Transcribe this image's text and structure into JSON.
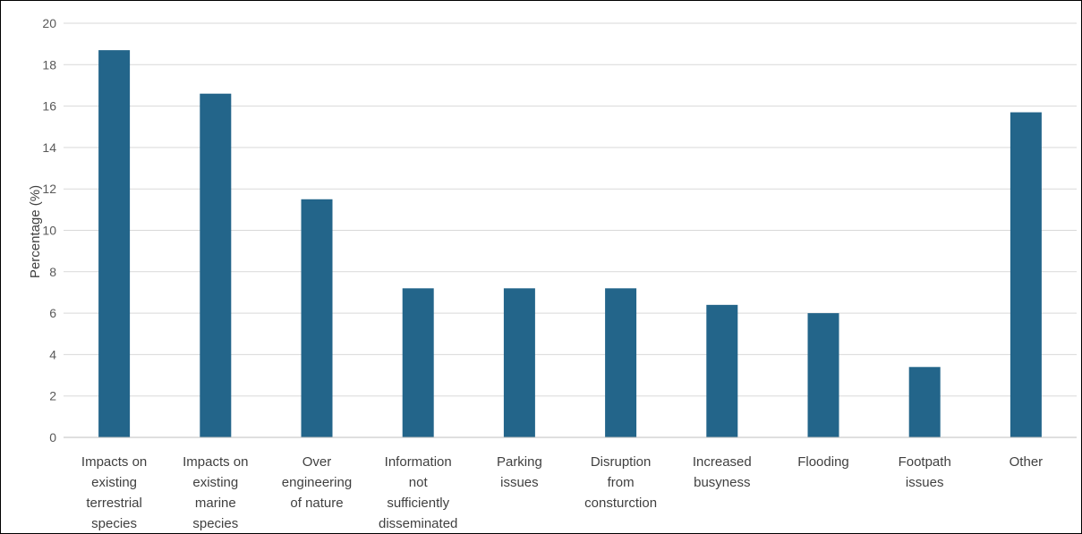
{
  "chart_data": {
    "type": "bar",
    "title": "",
    "xlabel": "",
    "ylabel": "Percentage (%)",
    "ylim": [
      0,
      20
    ],
    "yticks": [
      0,
      2,
      4,
      6,
      8,
      10,
      12,
      14,
      16,
      18,
      20
    ],
    "grid": true,
    "legend": "none",
    "categories": [
      [
        "Impacts on",
        "existing",
        "terrestrial",
        "species"
      ],
      [
        "Impacts on",
        "existing",
        "marine",
        "species"
      ],
      [
        "Over",
        "engineering",
        "of nature"
      ],
      [
        "Information",
        "not",
        "sufficiently",
        "disseminated"
      ],
      [
        "Parking",
        "issues"
      ],
      [
        "Disruption",
        "from",
        "consturction"
      ],
      [
        "Increased",
        "busyness"
      ],
      [
        "Flooding"
      ],
      [
        "Footpath",
        "issues"
      ],
      [
        "Other"
      ]
    ],
    "values": [
      18.7,
      16.6,
      11.5,
      7.2,
      7.2,
      7.2,
      6.4,
      6.0,
      3.4,
      15.7
    ],
    "bar_color": "#23658A",
    "grid_color": "#D9D9D9",
    "axis_color": "#BFBFBF"
  }
}
